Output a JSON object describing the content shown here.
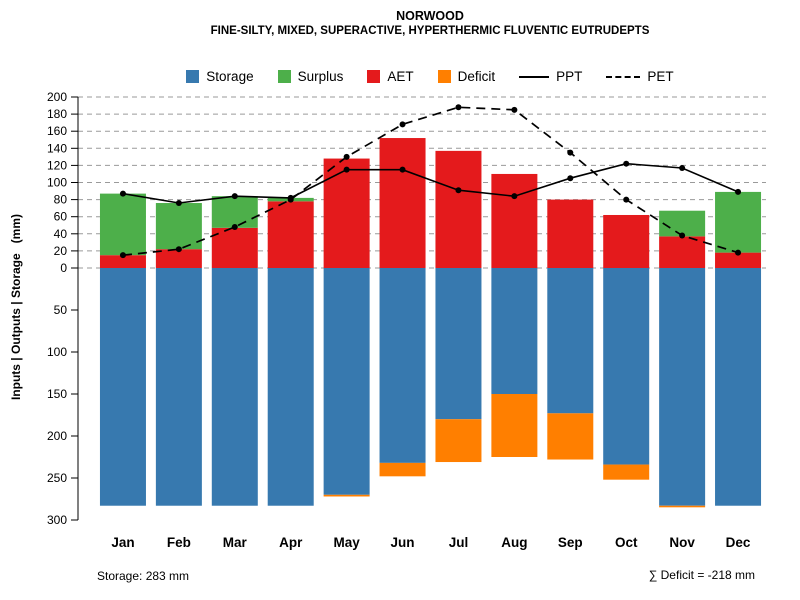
{
  "chart_data": {
    "type": "bar",
    "title": "NORWOOD",
    "subtitle": "FINE-SILTY, MIXED, SUPERACTIVE, HYPERTHERMIC FLUVENTIC EUTRUDEPTS",
    "ylabel": "Inputs | Outputs | Storage   (mm)",
    "months": [
      "Jan",
      "Feb",
      "Mar",
      "Apr",
      "May",
      "Jun",
      "Jul",
      "Aug",
      "Sep",
      "Oct",
      "Nov",
      "Dec"
    ],
    "series": [
      {
        "name": "Storage",
        "type": "bar-downward",
        "values": [
          283,
          283,
          283,
          283,
          270,
          232,
          180,
          150,
          173,
          234,
          283,
          283
        ]
      },
      {
        "name": "Surplus",
        "type": "bar-stacked-above-aet",
        "values": [
          72,
          54,
          37,
          4,
          0,
          0,
          0,
          0,
          0,
          0,
          30,
          71
        ]
      },
      {
        "name": "AET",
        "type": "bar-upward",
        "values": [
          15,
          22,
          47,
          78,
          128,
          152,
          137,
          110,
          80,
          62,
          37,
          18
        ]
      },
      {
        "name": "Deficit",
        "type": "bar-below-storage",
        "values": [
          0,
          0,
          0,
          0,
          2,
          16,
          51,
          75,
          55,
          18,
          1,
          0
        ]
      },
      {
        "name": "PPT",
        "type": "line-solid",
        "values": [
          87,
          76,
          84,
          82,
          115,
          115,
          91,
          84,
          105,
          122,
          117,
          89
        ]
      },
      {
        "name": "PET",
        "type": "line-dashed",
        "values": [
          15,
          22,
          48,
          80,
          130,
          168,
          188,
          185,
          135,
          80,
          38,
          18
        ]
      }
    ],
    "y_top": {
      "min": 0,
      "max": 200,
      "ticks": [
        0,
        20,
        40,
        60,
        80,
        100,
        120,
        140,
        160,
        180,
        200
      ]
    },
    "y_bottom": {
      "min": 0,
      "max": 300,
      "ticks": [
        50,
        100,
        150,
        200,
        250,
        300
      ]
    },
    "grid": "dashed-horizontal-top-panel-only",
    "legend_position": "top",
    "annotations": {
      "storage": "Storage: 283 mm",
      "deficit": "∑ Deficit = -218 mm"
    }
  },
  "legend": {
    "items": [
      {
        "label": "Storage",
        "swatch": "square-blue"
      },
      {
        "label": "Surplus",
        "swatch": "square-green"
      },
      {
        "label": "AET",
        "swatch": "square-red"
      },
      {
        "label": "Deficit",
        "swatch": "square-orange"
      },
      {
        "label": "PPT",
        "swatch": "line-solid"
      },
      {
        "label": "PET",
        "swatch": "line-dashed"
      }
    ]
  },
  "colors": {
    "storage": "#3779af",
    "surplus": "#4daf4a",
    "aet": "#e41a1c",
    "deficit": "#ff7f00",
    "lines": "#000000",
    "grid": "#9a9a9a"
  }
}
